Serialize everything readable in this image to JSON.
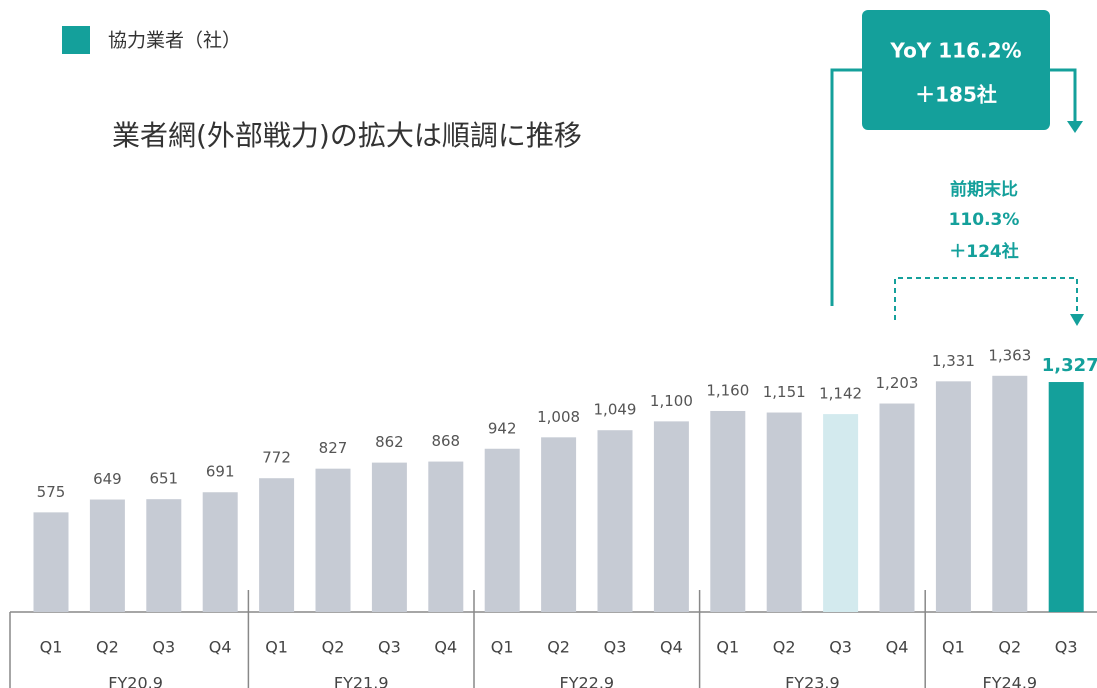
{
  "chart_data": {
    "type": "bar",
    "title": "業者網(外部戦力)の拡大は順調に推移",
    "legend": "協力業者（社）",
    "legend_color": "#14a09b",
    "groups": [
      {
        "name": "FY20.9",
        "quarters": [
          "Q1",
          "Q2",
          "Q3",
          "Q4"
        ]
      },
      {
        "name": "FY21.9",
        "quarters": [
          "Q1",
          "Q2",
          "Q3",
          "Q4"
        ]
      },
      {
        "name": "FY22.9",
        "quarters": [
          "Q1",
          "Q2",
          "Q3",
          "Q4"
        ]
      },
      {
        "name": "FY23.9",
        "quarters": [
          "Q1",
          "Q2",
          "Q3",
          "Q4"
        ]
      },
      {
        "name": "FY24.9",
        "quarters": [
          "Q1",
          "Q2",
          "Q3"
        ]
      }
    ],
    "values": [
      575,
      649,
      651,
      691,
      772,
      827,
      862,
      868,
      942,
      1008,
      1049,
      1100,
      1160,
      1151,
      1142,
      1203,
      1331,
      1363,
      1327
    ],
    "value_labels": [
      "575",
      "649",
      "651",
      "691",
      "772",
      "827",
      "862",
      "868",
      "942",
      "1,008",
      "1,049",
      "1,100",
      "1,160",
      "1,151",
      "1,142",
      "1,203",
      "1,331",
      "1,363",
      "1,327"
    ],
    "colors": [
      "#c6cbd4",
      "#c6cbd4",
      "#c6cbd4",
      "#c6cbd4",
      "#c6cbd4",
      "#c6cbd4",
      "#c6cbd4",
      "#c6cbd4",
      "#c6cbd4",
      "#c6cbd4",
      "#c6cbd4",
      "#c6cbd4",
      "#c6cbd4",
      "#c6cbd4",
      "#d3eaee",
      "#c6cbd4",
      "#c6cbd4",
      "#c6cbd4",
      "#14a09b"
    ],
    "annotations": {
      "yoy": [
        "YoY 116.2%",
        "＋185社"
      ],
      "vs_prior": [
        "前期末比",
        "110.3%",
        "＋124社"
      ]
    }
  }
}
